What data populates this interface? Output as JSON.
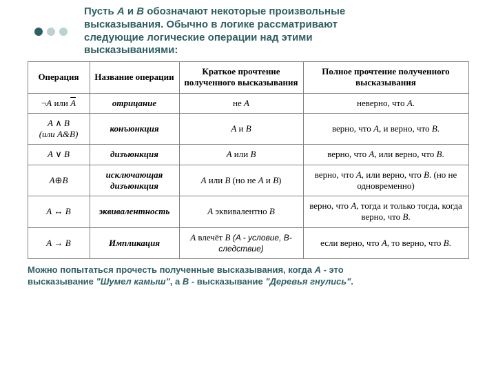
{
  "colors": {
    "heading": "#2f5f63",
    "dot_filled": "#2f5f63",
    "dot_light": "#b9d3d1",
    "border": "#808080",
    "background": "#ffffff"
  },
  "title": {
    "line1_pre": "Пусть ",
    "A": "A",
    "and": " и ",
    "B": "B",
    "line1_post": " обозначают некоторые произвольные",
    "line2": "высказывания. Обычно в логике рассматривают",
    "line3": "следующие логические операции над этими",
    "line4": "высказываниями:"
  },
  "table": {
    "headers": {
      "h1": "Операция",
      "h2": "Название операции",
      "h3": "Краткое прочтение полученного высказывания",
      "h4": "Полное прочтение полученного высказывания"
    },
    "rows": [
      {
        "op_pre": "¬",
        "op_mid": "A",
        "op_or": " или ",
        "op_bar": "A",
        "name": "отрицание",
        "short_pre": "не ",
        "short_A": "A",
        "full_pre": "неверно, что ",
        "full_A": "A",
        "full_post": "."
      },
      {
        "op_line1_A": "A",
        "op_line1_mid": " ∧ ",
        "op_line1_B": "B",
        "op_line2_pre": "(или ",
        "op_line2_A": "A",
        "op_line2_amp": "&",
        "op_line2_B": "B",
        "op_line2_post": ")",
        "name": "конъюнкция",
        "short_A": "A",
        "short_mid": " и ",
        "short_B": "B",
        "full": "верно, что {A}, и верно, что {B}."
      },
      {
        "op_A": "A",
        "op_mid": " ∨ ",
        "op_B": "B",
        "name": "дизъюнкция",
        "short_A": "A",
        "short_mid": " или ",
        "short_B": "B",
        "full": "верно, что {A}, или верно, что {B}."
      },
      {
        "op_A": "A",
        "op_sym": "⊕",
        "op_B": "B",
        "name": "исключающая дизъюнкция",
        "short": "{A} или {B} (но не {A} и {B})",
        "full": "верно, что {A}, или верно, что {B}. (но не одновременно)"
      },
      {
        "op_A": "A",
        "op_mid": " ↔ ",
        "op_B": "B",
        "name": "эквивалентность",
        "short": "{A} эквивалентно {B}",
        "full": "верно, что {A}, тогда и только тогда, когда верно, что {B}."
      },
      {
        "op_A": "A",
        "op_mid": " → ",
        "op_B": "B",
        "name": "Импликация",
        "short_main": "{A} влечёт {B}",
        "short_note": " (A - условие, B- следствие)",
        "full": "если верно, что {A}, то верно, что {B}."
      }
    ]
  },
  "footer": {
    "line1_pre": "Можно попытаться прочесть полученные высказывания, когда ",
    "A": "A",
    "line1_post": " - это",
    "line2_pre": "высказывание ",
    "q1": "\"Шумел камыш\"",
    "line2_mid": ", а ",
    "B": "B",
    "line2_post": " - высказывание ",
    "q2": "\"Деревья гнулись\"",
    "end": "."
  }
}
